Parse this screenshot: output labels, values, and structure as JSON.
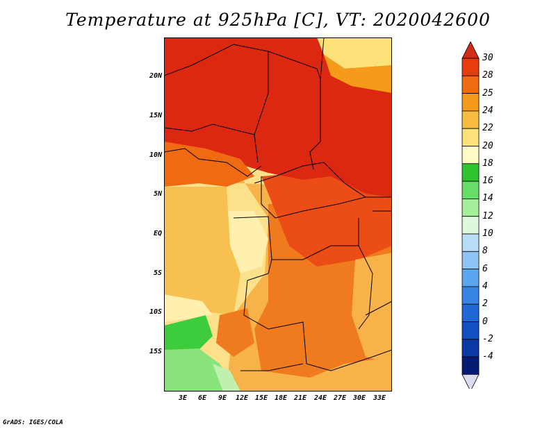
{
  "title": "Temperature at 925hPa [C], VT: 2020042600",
  "credit": "GrADS: IGES/COLA",
  "lat_labels": [
    "20N",
    "15N",
    "10N",
    "5N",
    "EQ",
    "5S",
    "10S",
    "15S"
  ],
  "lon_labels": [
    "3E",
    "6E",
    "9E",
    "12E",
    "15E",
    "18E",
    "21E",
    "24E",
    "27E",
    "30E",
    "33E"
  ],
  "colorbar": {
    "labels": [
      "30",
      "28",
      "25",
      "24",
      "22",
      "20",
      "18",
      "16",
      "14",
      "12",
      "10",
      "8",
      "6",
      "4",
      "2",
      "0",
      "-2",
      "-4"
    ],
    "colors": [
      "#d42a18",
      "#e83c10",
      "#ef6a10",
      "#f59a1a",
      "#f8bc40",
      "#fce078",
      "#fffbc4",
      "#2fc32f",
      "#66dd66",
      "#a4ee9c",
      "#def8dc",
      "#b8ddf8",
      "#8ec3f5",
      "#5ba6ee",
      "#3685e4",
      "#1f69d6",
      "#1150c0",
      "#0a38a4",
      "#061c74",
      "#dcdcf0"
    ]
  },
  "legend_colors": {
    "very_hot": "#dc2810",
    "hot": "#ec4c16",
    "warm": "#f58a22",
    "mild": "#f8b24a",
    "cool": "#fcd47c",
    "pale": "#fff0b0",
    "green_dark": "#3ccc3c",
    "green_light": "#88e47a"
  }
}
